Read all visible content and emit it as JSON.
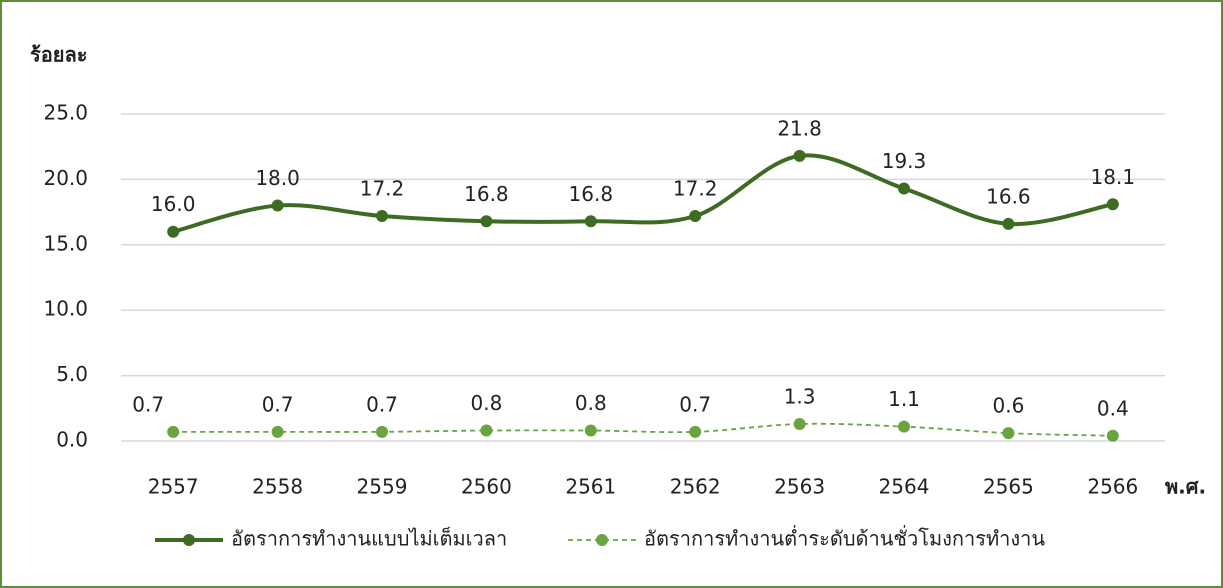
{
  "chart_data": {
    "type": "line",
    "y_label": "ร้อยละ",
    "x_label": "พ.ศ.",
    "categories": [
      "2557",
      "2558",
      "2559",
      "2560",
      "2561",
      "2562",
      "2563",
      "2564",
      "2565",
      "2566"
    ],
    "series": [
      {
        "name": "อัตราการทำงานแบบไม่เต็มเวลา",
        "color": "#3d6b22",
        "line_style": "solid",
        "values": [
          16.0,
          18.0,
          17.2,
          16.8,
          16.8,
          17.2,
          21.8,
          19.3,
          16.6,
          18.1
        ],
        "value_labels": [
          "16.0",
          "18.0",
          "17.2",
          "16.8",
          "16.8",
          "17.2",
          "21.8",
          "19.3",
          "16.6",
          "18.1"
        ]
      },
      {
        "name": "อัตราการทำงานต่ำระดับด้านชั่วโมงการทำงาน",
        "color": "#6aa33f",
        "line_style": "dashed",
        "values": [
          0.7,
          0.7,
          0.7,
          0.8,
          0.8,
          0.7,
          1.3,
          1.1,
          0.6,
          0.4
        ],
        "value_labels": [
          "0.7",
          "0.7",
          "0.7",
          "0.8",
          "0.8",
          "0.7",
          "1.3",
          "1.1",
          "0.6",
          "0.4"
        ]
      }
    ],
    "ylim": [
      0,
      25
    ],
    "yticks": [
      {
        "value": 0,
        "label": "0.0"
      },
      {
        "value": 5,
        "label": "5.0"
      },
      {
        "value": 10,
        "label": "10.0"
      },
      {
        "value": 15,
        "label": "15.0"
      },
      {
        "value": 20,
        "label": "20.0"
      },
      {
        "value": 25,
        "label": "25.0"
      }
    ],
    "grid": true,
    "legend": "bottom"
  }
}
